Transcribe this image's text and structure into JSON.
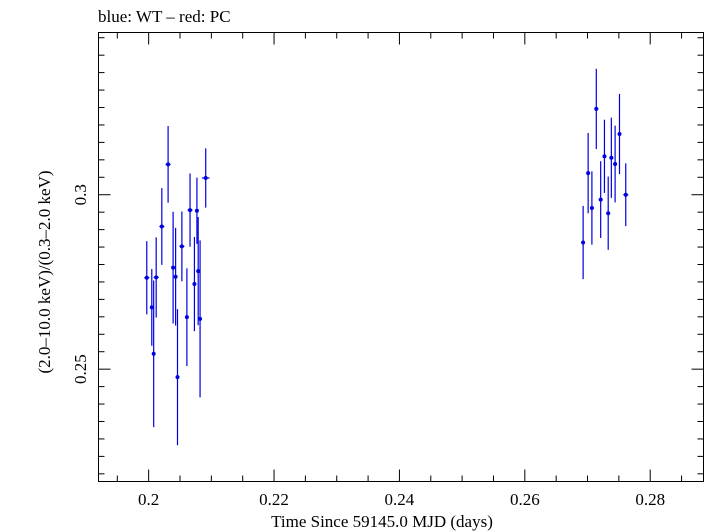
{
  "chart_data": {
    "type": "scatter",
    "title": "blue: WT – red: PC",
    "xlabel": "Time Since 59145.0 MJD (days)",
    "ylabel": "(2.0–10.0 keV)/(0.3–2.0 keV)",
    "xlim": [
      0.192,
      0.2885
    ],
    "ylim": [
      0.2178,
      0.3465
    ],
    "x_ticks": [
      0.2,
      0.22,
      0.24,
      0.26,
      0.28
    ],
    "x_tick_labels": [
      "0.2",
      "0.22",
      "0.24",
      "0.26",
      "0.28"
    ],
    "y_ticks": [
      0.25,
      0.3
    ],
    "y_tick_labels": [
      "0.25",
      "0.3"
    ],
    "grid": false,
    "series": [
      {
        "color": "#0000e0",
        "points": [
          {
            "x": 0.1997,
            "y": 0.2762,
            "xerr": 0.0004,
            "yerr": 0.0105
          },
          {
            "x": 0.2005,
            "y": 0.2677,
            "xerr": 0.0003,
            "yerr": 0.011
          },
          {
            "x": 0.2008,
            "y": 0.2544,
            "xerr": 0.0002,
            "yerr": 0.021
          },
          {
            "x": 0.2012,
            "y": 0.2763,
            "xerr": 0.0004,
            "yerr": 0.0115
          },
          {
            "x": 0.2021,
            "y": 0.2909,
            "xerr": 0.0004,
            "yerr": 0.011
          },
          {
            "x": 0.2031,
            "y": 0.3087,
            "xerr": 0.0004,
            "yerr": 0.011
          },
          {
            "x": 0.2039,
            "y": 0.2791,
            "xerr": 0.0002,
            "yerr": 0.016
          },
          {
            "x": 0.2043,
            "y": 0.2765,
            "xerr": 0.0002,
            "yerr": 0.014
          },
          {
            "x": 0.2046,
            "y": 0.2477,
            "xerr": 0.0002,
            "yerr": 0.0195
          },
          {
            "x": 0.2053,
            "y": 0.2852,
            "xerr": 0.0004,
            "yerr": 0.01
          },
          {
            "x": 0.2061,
            "y": 0.2649,
            "xerr": 0.0002,
            "yerr": 0.014
          },
          {
            "x": 0.2066,
            "y": 0.2956,
            "xerr": 0.0004,
            "yerr": 0.0105
          },
          {
            "x": 0.2073,
            "y": 0.2744,
            "xerr": 0.0002,
            "yerr": 0.0135
          },
          {
            "x": 0.2077,
            "y": 0.2954,
            "xerr": 0.0002,
            "yerr": 0.0095
          },
          {
            "x": 0.2079,
            "y": 0.2781,
            "xerr": 0.0002,
            "yerr": 0.0155
          },
          {
            "x": 0.2082,
            "y": 0.2644,
            "xerr": 0.0002,
            "yerr": 0.0225
          },
          {
            "x": 0.2091,
            "y": 0.3048,
            "xerr": 0.0006,
            "yerr": 0.0085
          },
          {
            "x": 0.2693,
            "y": 0.2863,
            "xerr": 0.0003,
            "yerr": 0.0105
          },
          {
            "x": 0.2701,
            "y": 0.3062,
            "xerr": 0.0003,
            "yerr": 0.0115
          },
          {
            "x": 0.2707,
            "y": 0.2962,
            "xerr": 0.0003,
            "yerr": 0.0105
          },
          {
            "x": 0.2714,
            "y": 0.3246,
            "xerr": 0.0003,
            "yerr": 0.0115
          },
          {
            "x": 0.2721,
            "y": 0.2986,
            "xerr": 0.0003,
            "yerr": 0.011
          },
          {
            "x": 0.2727,
            "y": 0.311,
            "xerr": 0.0003,
            "yerr": 0.0105
          },
          {
            "x": 0.2733,
            "y": 0.2947,
            "xerr": 0.0003,
            "yerr": 0.0105
          },
          {
            "x": 0.2738,
            "y": 0.3106,
            "xerr": 0.0003,
            "yerr": 0.0115
          },
          {
            "x": 0.2744,
            "y": 0.3088,
            "xerr": 0.0003,
            "yerr": 0.011
          },
          {
            "x": 0.2751,
            "y": 0.3174,
            "xerr": 0.0003,
            "yerr": 0.0115
          },
          {
            "x": 0.2761,
            "y": 0.3,
            "xerr": 0.0004,
            "yerr": 0.009
          }
        ]
      }
    ]
  }
}
